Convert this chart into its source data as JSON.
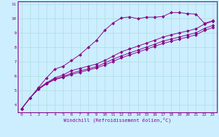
{
  "xlabel": "Windchill (Refroidissement éolien,°C)",
  "background_color": "#cceeff",
  "line_color": "#880088",
  "grid_color": "#aadddd",
  "marker": "D",
  "marker_size": 2.0,
  "linewidth": 0.7,
  "xlim": [
    -0.5,
    23.5
  ],
  "ylim": [
    3.5,
    11.2
  ],
  "yticks": [
    4,
    5,
    6,
    7,
    8,
    9,
    10,
    11
  ],
  "xticks": [
    0,
    1,
    2,
    3,
    4,
    5,
    6,
    7,
    8,
    9,
    10,
    11,
    12,
    13,
    14,
    15,
    16,
    17,
    18,
    19,
    20,
    21,
    22,
    23
  ],
  "tick_fontsize": 4.5,
  "xlabel_fontsize": 5.0,
  "series": [
    [
      3.75,
      4.5,
      5.2,
      5.9,
      6.5,
      6.7,
      7.1,
      7.5,
      8.0,
      8.5,
      9.2,
      9.7,
      10.05,
      10.12,
      10.0,
      10.1,
      10.1,
      10.15,
      10.42,
      10.42,
      10.35,
      10.32,
      9.68,
      9.85
    ],
    [
      3.75,
      4.5,
      5.15,
      5.55,
      5.9,
      6.1,
      6.4,
      6.55,
      6.7,
      6.85,
      7.1,
      7.4,
      7.7,
      7.9,
      8.1,
      8.3,
      8.5,
      8.72,
      8.88,
      9.02,
      9.15,
      9.3,
      9.62,
      9.82
    ],
    [
      3.75,
      4.5,
      5.1,
      5.5,
      5.82,
      5.98,
      6.22,
      6.38,
      6.52,
      6.67,
      6.92,
      7.18,
      7.42,
      7.62,
      7.82,
      8.02,
      8.22,
      8.44,
      8.58,
      8.73,
      8.88,
      9.02,
      9.32,
      9.52
    ],
    [
      3.75,
      4.5,
      5.1,
      5.48,
      5.78,
      5.93,
      6.13,
      6.28,
      6.43,
      6.58,
      6.78,
      7.03,
      7.28,
      7.48,
      7.68,
      7.88,
      8.08,
      8.28,
      8.43,
      8.58,
      8.73,
      8.88,
      9.18,
      9.38
    ]
  ]
}
